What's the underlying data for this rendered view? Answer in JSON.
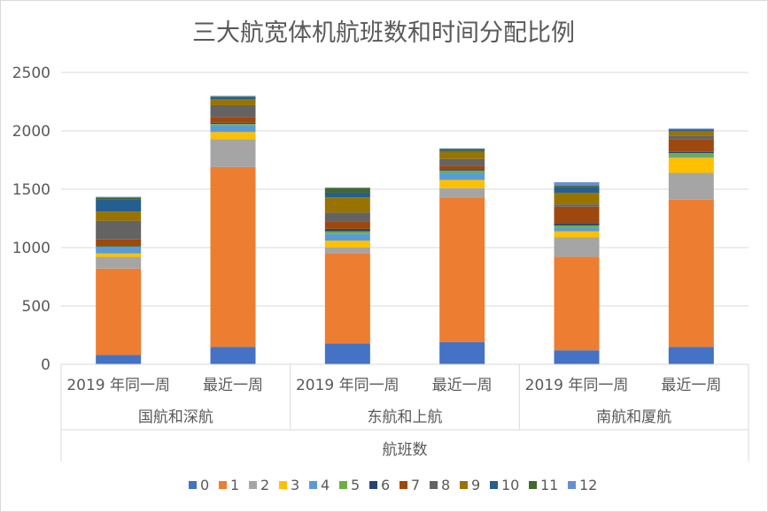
{
  "chart_data": {
    "type": "bar",
    "stacked": true,
    "title": "三大航宽体机航班数和时间分配比例",
    "ylim": [
      0,
      2500
    ],
    "yticks": [
      0,
      500,
      1000,
      1500,
      2000,
      2500
    ],
    "grid": true,
    "legend_position": "bottom",
    "x_levels": {
      "categories": [
        "2019 年同一周",
        "最近一周",
        "2019 年同一周",
        "最近一周",
        "2019 年同一周",
        "最近一周"
      ],
      "groups": [
        "国航和深航",
        "东航和上航",
        "南航和厦航"
      ],
      "outer_label": "航班数"
    },
    "series": [
      {
        "name": "0",
        "color": "#4472C4",
        "values": [
          80,
          150,
          180,
          190,
          120,
          150
        ]
      },
      {
        "name": "1",
        "color": "#ED7D31",
        "values": [
          740,
          1540,
          770,
          1240,
          800,
          1260
        ]
      },
      {
        "name": "2",
        "color": "#A5A5A5",
        "values": [
          100,
          240,
          50,
          80,
          170,
          230
        ]
      },
      {
        "name": "3",
        "color": "#FFC000",
        "values": [
          30,
          60,
          60,
          70,
          50,
          130
        ]
      },
      {
        "name": "4",
        "color": "#5B9BD5",
        "values": [
          50,
          60,
          60,
          60,
          30,
          10
        ]
      },
      {
        "name": "5",
        "color": "#70AD47",
        "values": [
          10,
          10,
          20,
          20,
          20,
          30
        ]
      },
      {
        "name": "6",
        "color": "#264478",
        "values": [
          10,
          10,
          20,
          10,
          20,
          10
        ]
      },
      {
        "name": "7",
        "color": "#9E480E",
        "values": [
          50,
          50,
          60,
          30,
          140,
          110
        ]
      },
      {
        "name": "8",
        "color": "#636363",
        "values": [
          160,
          100,
          80,
          60,
          20,
          30
        ]
      },
      {
        "name": "9",
        "color": "#997300",
        "values": [
          80,
          50,
          130,
          60,
          100,
          40
        ]
      },
      {
        "name": "10",
        "color": "#255E91",
        "values": [
          100,
          20,
          40,
          10,
          50,
          10
        ]
      },
      {
        "name": "11",
        "color": "#43682B",
        "values": [
          20,
          5,
          40,
          15,
          10,
          5
        ]
      },
      {
        "name": "12",
        "color": "#698ED0",
        "values": [
          5,
          5,
          5,
          5,
          30,
          5
        ]
      }
    ]
  }
}
